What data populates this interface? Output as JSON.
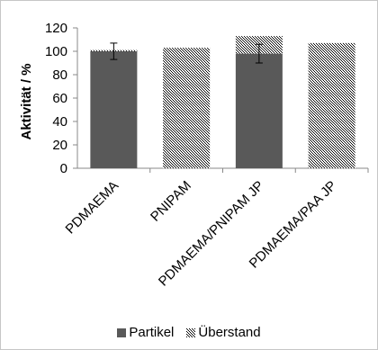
{
  "chart_data": {
    "type": "bar",
    "title": "",
    "xlabel": "",
    "ylabel": "Aktivität / %",
    "ylim": [
      0,
      120
    ],
    "yticks": [
      0,
      20,
      40,
      60,
      80,
      100,
      120
    ],
    "grid": false,
    "legend_position": "bottom",
    "categories": [
      "PDMAEMA",
      "PNIPAM",
      "PDMAEMA/PNIPAM JP",
      "PDMAEMA/PAA JP"
    ],
    "series": [
      {
        "name": "Partikel",
        "values": [
          100,
          0,
          98,
          0
        ],
        "error": [
          7,
          0,
          8,
          0
        ],
        "color": "#595959",
        "pattern": "solid"
      },
      {
        "name": "Überstand",
        "values": [
          101,
          103,
          113,
          107
        ],
        "color": "#000000",
        "pattern": "dense-hatch"
      }
    ]
  }
}
